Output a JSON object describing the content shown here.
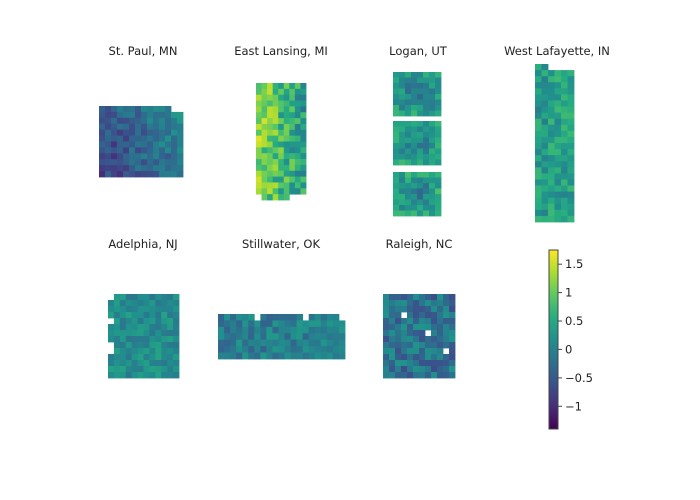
{
  "chart_data": {
    "type": "heatmap",
    "colorscale": "viridis",
    "colorscale_stops": [
      "#440154",
      "#472c7a",
      "#3b518b",
      "#2c718e",
      "#21908d",
      "#27ad81",
      "#5cc863",
      "#aadc32",
      "#fde725"
    ],
    "zlim": [
      -1.4,
      1.75
    ],
    "colorbar": {
      "ticks": [
        1.5,
        1,
        0.5,
        0,
        -0.5,
        -1
      ],
      "tick_labels": [
        "1.5",
        "1",
        "0.5",
        "0",
        "−0.5",
        "−1"
      ]
    },
    "panels": [
      {
        "title": "St. Paul, MN",
        "rows": 12,
        "cols": 14,
        "mean": -0.35,
        "spread": 0.35,
        "gradient": "left-low",
        "missing": [
          [
            0,
            12
          ],
          [
            0,
            13
          ]
        ]
      },
      {
        "title": "East Lansing, MI",
        "rows": 20,
        "cols": 9,
        "mean": 0.75,
        "spread": 0.55,
        "gradient": "left-high",
        "missing": [
          [
            19,
            0
          ],
          [
            19,
            6
          ],
          [
            19,
            7
          ],
          [
            19,
            8
          ]
        ]
      },
      {
        "title": "Logan, UT",
        "blocks": [
          {
            "rows": 8,
            "cols": 8,
            "mean": 0.1,
            "spread": 0.35,
            "gradient": "center-low"
          },
          {
            "rows": 8,
            "cols": 8,
            "mean": 0.15,
            "spread": 0.35,
            "gradient": "center-low"
          },
          {
            "rows": 8,
            "cols": 8,
            "mean": 0.2,
            "spread": 0.35,
            "gradient": "center-low"
          }
        ]
      },
      {
        "title": "West Lafayette, IN",
        "rows": 26,
        "cols": 6,
        "mean": 0.35,
        "spread": 0.4,
        "gradient": "none",
        "missing": [
          [
            0,
            2
          ],
          [
            0,
            3
          ],
          [
            0,
            4
          ],
          [
            0,
            5
          ]
        ]
      },
      {
        "title": "Adelphia, NJ",
        "rows": 14,
        "cols": 12,
        "mean": 0.15,
        "spread": 0.3,
        "gradient": "none",
        "missing": [
          [
            0,
            0
          ],
          [
            4,
            0
          ],
          [
            8,
            0
          ],
          [
            9,
            0
          ]
        ]
      },
      {
        "title": "Stillwater, OK",
        "rows": 7,
        "cols": 21,
        "mean": -0.05,
        "spread": 0.35,
        "gradient": "none",
        "missing": [
          [
            0,
            6
          ],
          [
            0,
            14
          ],
          [
            0,
            20
          ]
        ]
      },
      {
        "title": "Raleigh, NC",
        "rows": 14,
        "cols": 12,
        "mean": -0.2,
        "spread": 0.45,
        "gradient": "none",
        "missing": [
          [
            3,
            3
          ],
          [
            6,
            7
          ],
          [
            9,
            10
          ]
        ]
      }
    ]
  }
}
